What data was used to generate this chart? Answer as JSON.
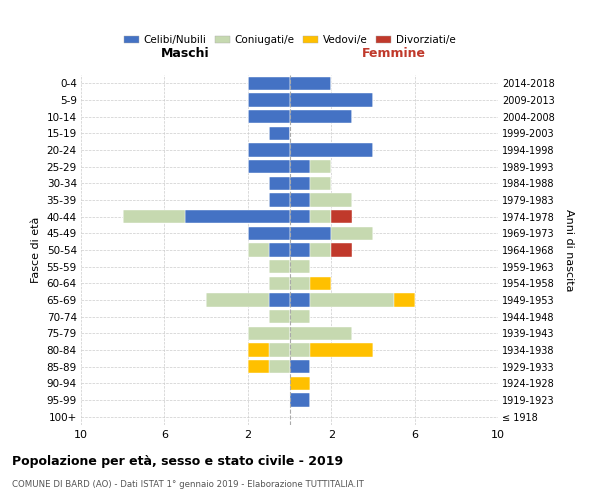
{
  "age_groups": [
    "100+",
    "95-99",
    "90-94",
    "85-89",
    "80-84",
    "75-79",
    "70-74",
    "65-69",
    "60-64",
    "55-59",
    "50-54",
    "45-49",
    "40-44",
    "35-39",
    "30-34",
    "25-29",
    "20-24",
    "15-19",
    "10-14",
    "5-9",
    "0-4"
  ],
  "birth_years": [
    "≤ 1918",
    "1919-1923",
    "1924-1928",
    "1929-1933",
    "1934-1938",
    "1939-1943",
    "1944-1948",
    "1949-1953",
    "1954-1958",
    "1959-1963",
    "1964-1968",
    "1969-1973",
    "1974-1978",
    "1979-1983",
    "1984-1988",
    "1989-1993",
    "1994-1998",
    "1999-2003",
    "2004-2008",
    "2009-2013",
    "2014-2018"
  ],
  "maschi_celibi": [
    0,
    0,
    0,
    0,
    0,
    0,
    0,
    1,
    0,
    0,
    1,
    2,
    5,
    1,
    1,
    2,
    2,
    1,
    2,
    2,
    2
  ],
  "maschi_coniugati": [
    0,
    0,
    0,
    1,
    1,
    2,
    1,
    3,
    1,
    1,
    1,
    0,
    3,
    0,
    0,
    0,
    0,
    0,
    0,
    0,
    0
  ],
  "maschi_vedovi": [
    0,
    0,
    0,
    1,
    1,
    0,
    0,
    0,
    0,
    0,
    0,
    0,
    0,
    0,
    0,
    0,
    0,
    0,
    0,
    0,
    0
  ],
  "maschi_divorziati": [
    0,
    0,
    0,
    0,
    0,
    0,
    0,
    0,
    0,
    0,
    0,
    0,
    0,
    0,
    0,
    0,
    0,
    0,
    0,
    0,
    0
  ],
  "femmine_nubili": [
    0,
    1,
    0,
    1,
    0,
    0,
    0,
    1,
    0,
    0,
    1,
    2,
    1,
    1,
    1,
    1,
    4,
    0,
    3,
    4,
    2
  ],
  "femmine_coniugate": [
    0,
    0,
    0,
    0,
    1,
    3,
    1,
    4,
    1,
    1,
    1,
    2,
    1,
    2,
    1,
    1,
    0,
    0,
    0,
    0,
    0
  ],
  "femmine_vedove": [
    0,
    0,
    1,
    0,
    3,
    0,
    0,
    1,
    1,
    0,
    0,
    0,
    0,
    0,
    0,
    0,
    0,
    0,
    0,
    0,
    0
  ],
  "femmine_divorziate": [
    0,
    0,
    0,
    0,
    0,
    0,
    0,
    0,
    0,
    0,
    1,
    0,
    1,
    0,
    0,
    0,
    0,
    0,
    0,
    0,
    0
  ],
  "color_celibi": "#4472c4",
  "color_coniugati": "#c6d9b0",
  "color_vedovi": "#ffc000",
  "color_divorziati": "#c0392b",
  "title": "Popolazione per età, sesso e stato civile - 2019",
  "subtitle": "COMUNE DI BARD (AO) - Dati ISTAT 1° gennaio 2019 - Elaborazione TUTTITALIA.IT",
  "label_maschi": "Maschi",
  "label_femmine": "Femmine",
  "ylabel_left": "Fasce di età",
  "ylabel_right": "Anni di nascita",
  "legend_labels": [
    "Celibi/Nubili",
    "Coniugati/e",
    "Vedovi/e",
    "Divorziati/e"
  ],
  "xlim": 10
}
